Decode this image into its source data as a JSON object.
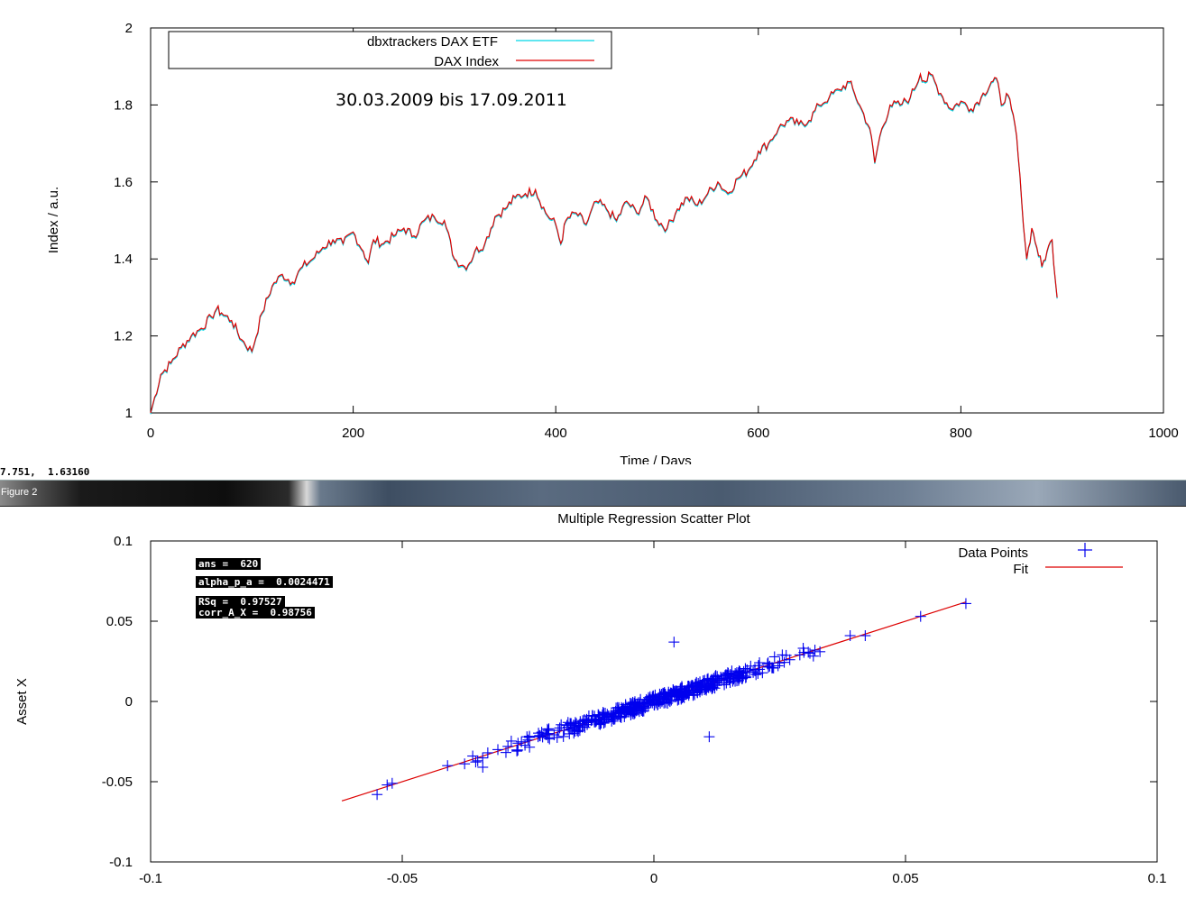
{
  "figure1": {
    "chart_data": {
      "type": "line",
      "ylabel": "Index / a.u.",
      "xlabel": "Time / Days",
      "annotation": "30.03.2009 bis 17.09.2011",
      "xlim": [
        0,
        1000
      ],
      "ylim": [
        1,
        2
      ],
      "xticks": [
        "0",
        "200",
        "400",
        "600",
        "800",
        "1000"
      ],
      "yticks": [
        "1",
        "1.2",
        "1.4",
        "1.6",
        "1.8",
        "2"
      ],
      "legend_position": "top-left",
      "series": [
        {
          "name": "dbxtrackers DAX ETF",
          "color": "#00d8e8"
        },
        {
          "name": "DAX Index",
          "color": "#e00000"
        }
      ],
      "x": [
        0,
        10,
        20,
        30,
        40,
        50,
        60,
        65,
        70,
        80,
        90,
        100,
        110,
        120,
        130,
        140,
        150,
        160,
        170,
        180,
        190,
        200,
        210,
        215,
        220,
        230,
        240,
        250,
        260,
        270,
        280,
        290,
        300,
        310,
        315,
        320,
        330,
        340,
        350,
        360,
        370,
        380,
        390,
        400,
        405,
        410,
        420,
        430,
        440,
        450,
        460,
        470,
        480,
        490,
        500,
        510,
        520,
        530,
        540,
        550,
        560,
        570,
        580,
        590,
        600,
        610,
        620,
        630,
        640,
        650,
        660,
        670,
        680,
        690,
        695,
        700,
        710,
        715,
        720,
        730,
        740,
        750,
        760,
        765,
        770,
        780,
        790,
        800,
        810,
        820,
        830,
        835,
        840,
        845,
        850,
        855,
        860,
        865,
        870,
        875,
        880,
        885,
        890,
        895
      ],
      "y": [
        1.0,
        1.1,
        1.13,
        1.17,
        1.2,
        1.22,
        1.25,
        1.27,
        1.26,
        1.24,
        1.19,
        1.16,
        1.26,
        1.33,
        1.36,
        1.34,
        1.38,
        1.4,
        1.43,
        1.45,
        1.44,
        1.47,
        1.42,
        1.39,
        1.45,
        1.44,
        1.46,
        1.48,
        1.46,
        1.5,
        1.51,
        1.5,
        1.4,
        1.38,
        1.39,
        1.42,
        1.44,
        1.51,
        1.53,
        1.56,
        1.57,
        1.58,
        1.52,
        1.49,
        1.44,
        1.5,
        1.52,
        1.49,
        1.55,
        1.53,
        1.5,
        1.55,
        1.52,
        1.56,
        1.5,
        1.48,
        1.53,
        1.56,
        1.54,
        1.57,
        1.6,
        1.57,
        1.61,
        1.63,
        1.68,
        1.7,
        1.74,
        1.76,
        1.75,
        1.76,
        1.8,
        1.82,
        1.84,
        1.86,
        1.83,
        1.8,
        1.74,
        1.65,
        1.72,
        1.8,
        1.8,
        1.82,
        1.88,
        1.86,
        1.88,
        1.83,
        1.79,
        1.81,
        1.79,
        1.82,
        1.86,
        1.87,
        1.8,
        1.83,
        1.79,
        1.72,
        1.55,
        1.4,
        1.48,
        1.43,
        1.38,
        1.42,
        1.45,
        1.3
      ]
    }
  },
  "coord_readout": "7.751,  1.63160",
  "window": {
    "title": "Figure 2"
  },
  "figure2": {
    "chart_data": {
      "type": "scatter",
      "title": "Multiple Regression Scatter Plot",
      "ylabel": "Asset X",
      "xlabel": "",
      "xlim": [
        -0.1,
        0.1
      ],
      "ylim": [
        -0.1,
        0.1
      ],
      "xticks": [
        "-0.1",
        "-0.05",
        "0",
        "0.05",
        "0.1"
      ],
      "yticks": [
        "-0.1",
        "-0.05",
        "0",
        "0.05",
        "0.1"
      ],
      "legend_position": "top-right",
      "series": [
        {
          "name": "Data Points",
          "color": "#0000ee",
          "marker": "+"
        },
        {
          "name": "Fit",
          "color": "#dd0000",
          "fit": {
            "slope": 1.0,
            "intercept": 0.0,
            "x_range": [
              -0.062,
              0.062
            ]
          }
        }
      ],
      "x": [
        -0.055,
        -0.053,
        -0.052,
        -0.041,
        -0.036,
        -0.035,
        -0.034,
        -0.033,
        -0.031,
        -0.029,
        -0.027,
        -0.025,
        -0.023,
        -0.021,
        -0.019,
        -0.017,
        -0.015,
        -0.013,
        -0.011,
        -0.009,
        -0.007,
        -0.005,
        -0.003,
        -0.001,
        0.001,
        0.003,
        0.004,
        0.005,
        0.007,
        0.009,
        0.01,
        0.011,
        0.013,
        0.015,
        0.017,
        0.019,
        0.021,
        0.023,
        0.025,
        0.027,
        0.029,
        0.031,
        0.032,
        0.033,
        0.039,
        0.042,
        0.053,
        0.062
      ],
      "y": [
        -0.058,
        -0.052,
        -0.051,
        -0.04,
        -0.034,
        -0.037,
        -0.041,
        -0.032,
        -0.03,
        -0.028,
        -0.026,
        -0.024,
        -0.022,
        -0.02,
        -0.018,
        -0.016,
        -0.015,
        -0.013,
        -0.011,
        -0.009,
        -0.007,
        -0.005,
        -0.003,
        -0.001,
        0.001,
        0.003,
        0.037,
        0.005,
        0.007,
        0.009,
        0.011,
        -0.022,
        0.013,
        0.014,
        0.016,
        0.018,
        0.02,
        0.022,
        0.024,
        0.026,
        0.029,
        0.03,
        0.032,
        0.031,
        0.041,
        0.041,
        0.053,
        0.061
      ]
    },
    "console_lines": [
      "ans =  620",
      "alpha_p_a =  0.0024471",
      "RSq =  0.97527",
      "corr_A_X =  0.98756"
    ]
  }
}
